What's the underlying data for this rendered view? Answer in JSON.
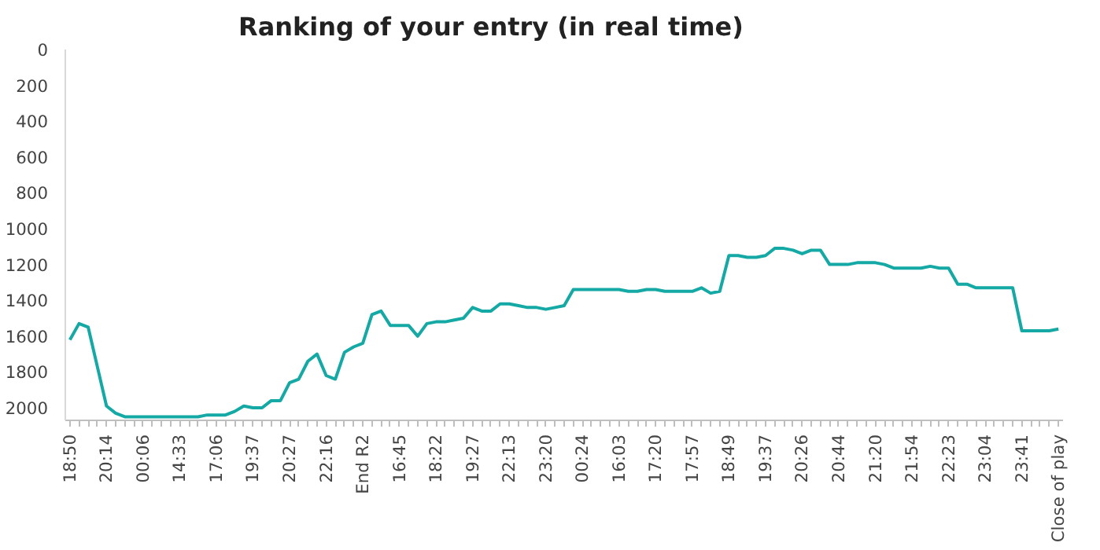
{
  "chart_data": {
    "type": "line",
    "title": "Ranking of your entry (in real time)",
    "categories": [
      "18:50",
      null,
      null,
      null,
      "20:14",
      null,
      null,
      null,
      "00:06",
      null,
      null,
      null,
      "14:33",
      null,
      null,
      null,
      "17:06",
      null,
      null,
      null,
      "19:37",
      null,
      null,
      null,
      "20:27",
      null,
      null,
      null,
      "22:16",
      null,
      null,
      null,
      "End R2",
      null,
      null,
      null,
      "16:45",
      null,
      null,
      null,
      "18:22",
      null,
      null,
      null,
      "19:27",
      null,
      null,
      null,
      "22:13",
      null,
      null,
      null,
      "23:20",
      null,
      null,
      null,
      "00:24",
      null,
      null,
      null,
      "16:03",
      null,
      null,
      null,
      "17:20",
      null,
      null,
      null,
      "17:57",
      null,
      null,
      null,
      "18:49",
      null,
      null,
      null,
      "19:37",
      null,
      null,
      null,
      "20:26",
      null,
      null,
      null,
      "20:44",
      null,
      null,
      null,
      "21:20",
      null,
      null,
      null,
      "21:54",
      null,
      null,
      null,
      "22:23",
      null,
      null,
      null,
      "23:04",
      null,
      null,
      null,
      "23:41",
      null,
      null,
      null,
      "Close of play"
    ],
    "series": [
      {
        "color": "#14a9a4",
        "values": [
          1620,
          1530,
          1550,
          1770,
          1990,
          2030,
          2050,
          2050,
          2050,
          2050,
          2050,
          2050,
          2050,
          2050,
          2050,
          2040,
          2040,
          2040,
          2020,
          1990,
          2000,
          2000,
          1960,
          1960,
          1860,
          1840,
          1740,
          1700,
          1820,
          1840,
          1690,
          1660,
          1640,
          1480,
          1460,
          1540,
          1540,
          1540,
          1600,
          1530,
          1520,
          1520,
          1510,
          1500,
          1440,
          1460,
          1460,
          1420,
          1420,
          1430,
          1440,
          1440,
          1450,
          1440,
          1430,
          1340,
          1340,
          1340,
          1340,
          1340,
          1340,
          1350,
          1350,
          1340,
          1340,
          1350,
          1350,
          1350,
          1350,
          1330,
          1360,
          1350,
          1150,
          1150,
          1160,
          1160,
          1150,
          1110,
          1110,
          1120,
          1140,
          1120,
          1120,
          1200,
          1200,
          1200,
          1190,
          1190,
          1190,
          1200,
          1220,
          1220,
          1220,
          1220,
          1210,
          1220,
          1220,
          1310,
          1310,
          1330,
          1330,
          1330,
          1330,
          1330,
          1570,
          1570,
          1570,
          1570,
          1560
        ]
      }
    ],
    "ylim": [
      2070,
      0
    ],
    "yticks": [
      0,
      200,
      400,
      600,
      800,
      1000,
      1200,
      1400,
      1600,
      1800,
      2000
    ],
    "grid": false,
    "marker": "none",
    "line_style": "solid"
  }
}
